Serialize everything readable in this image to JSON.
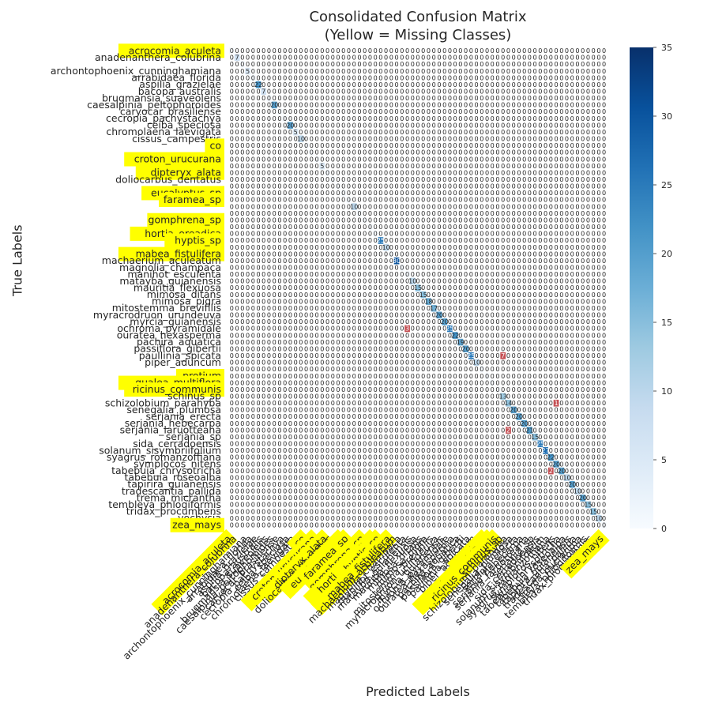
{
  "chart_data": {
    "type": "heatmap",
    "title": "Consolidated Confusion Matrix",
    "subtitle": "(Yellow = Missing Classes)",
    "xlabel": "Predicted Labels",
    "ylabel": "True Labels",
    "colorbar": {
      "range": [
        0,
        35
      ],
      "ticks": [
        0,
        5,
        10,
        15,
        20,
        25,
        30,
        35
      ],
      "colormap": "Blues"
    },
    "highlight_color": "#ffff00",
    "off_diagonal_color": "#c44e52",
    "labels": [
      "acrocomia_aculeta",
      "anadenanthera_colubrina",
      "",
      "archontophoenix_cunninghamiana",
      "arrabidaea_florida",
      "aspilia_grazielae",
      "bacopa_australis",
      "brugmansia_suaveolens",
      "caesalpinia_peltophoroides",
      "caryocar_brasiliense",
      "cecropia_pachystachya",
      "ceiba_speciosa",
      "chromolaena_laevigata",
      "cissus_campestris",
      "co",
      "",
      "croton_urucurana",
      "",
      "dipteryx_alata",
      "doliocarbus_dentatus",
      "",
      "eucalyptus_sp",
      "faramea_sp",
      "",
      "",
      "gomphrena_sp",
      "",
      "hortia_oreadica",
      "hyptis_sp",
      "",
      "mabea_fistulifera",
      "machaerium_aculeatum",
      "magnolia_champaca",
      "manihot_esculenta",
      "matayba_guianensis",
      "mauritia_flexuosa",
      "mimosa_ditans",
      "mimosa_pigra",
      "mitostemma_brevifilis",
      "myracrodruon_urundeuva",
      "myrcia_guianensis",
      "ochroma_pyramidale",
      "ouratea_hexasperma",
      "pachira_aquatica",
      "passiflora_gibertii",
      "paullinia_spicata",
      "piper_aduncum",
      "",
      "protium",
      "qualea_multiflora",
      "ricinus_communis",
      "schinus_sp",
      "schizolobium_parahyba",
      "senegalia_plumosa",
      "serjania_erecta",
      "serjania_hebecarpa",
      "serjania_laruotteana",
      "serjania_sp",
      "sida_cerradoensis",
      "solanum_sisymbriifolium",
      "syagrus_romanzoffiana",
      "symplocos_nitens",
      "tabebuia_chrysotricha",
      "tabebuia_roseoalba",
      "tapirira_guianensis",
      "tradescantia_pallida",
      "trema_micrantha",
      "tembleya_phlogiformis",
      "tridax_procumbens",
      "vochysia",
      "zea_mays"
    ],
    "missing_classes": [
      0,
      14,
      15,
      16,
      17,
      18,
      20,
      21,
      22,
      24,
      25,
      26,
      27,
      28,
      30,
      48,
      49,
      50,
      70
    ],
    "diagonal_values": [
      0,
      7,
      0,
      5,
      0,
      22,
      7,
      0,
      20,
      0,
      0,
      20,
      5,
      10,
      0,
      0,
      0,
      5,
      0,
      0,
      0,
      0,
      0,
      10,
      0,
      0,
      0,
      0,
      25,
      10,
      0,
      30,
      0,
      0,
      10,
      15,
      15,
      18,
      17,
      20,
      20,
      25,
      22,
      19,
      20,
      25,
      10,
      0,
      0,
      0,
      0,
      13,
      14,
      20,
      20,
      20,
      21,
      15,
      25,
      27,
      22,
      20,
      20,
      10,
      20,
      10,
      20,
      15,
      15,
      10,
      0
    ],
    "off_diagonal": [
      {
        "row": 41,
        "col": 33,
        "value": 3
      },
      {
        "row": 45,
        "col": 51,
        "value": 7
      },
      {
        "row": 52,
        "col": 61,
        "value": 1
      },
      {
        "row": 56,
        "col": 52,
        "value": 2
      },
      {
        "row": 62,
        "col": 60,
        "value": 2
      }
    ]
  }
}
